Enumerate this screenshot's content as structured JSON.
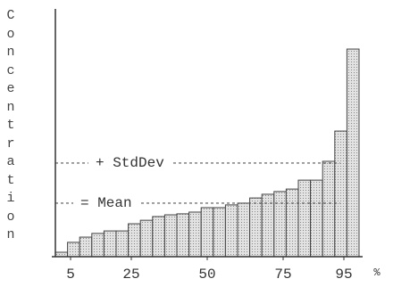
{
  "chart_data": {
    "type": "histogram",
    "y_label": "Concentration",
    "x_unit": "%",
    "bins": [
      0,
      4,
      8,
      12,
      16,
      20,
      24,
      28,
      32,
      36,
      40,
      44,
      48,
      52,
      56,
      60,
      64,
      68,
      72,
      76,
      80,
      84,
      88,
      92,
      96,
      100
    ],
    "values": [
      1.8,
      5.8,
      7.9,
      9.4,
      10.4,
      10.4,
      13.3,
      14.7,
      16.2,
      16.9,
      17.3,
      18,
      19.8,
      19.8,
      20.9,
      21.6,
      23.7,
      25.2,
      26.3,
      27.3,
      30.9,
      30.9,
      38.5,
      50.7,
      83.8
    ],
    "color": "#d4d4d4",
    "xlim": [
      0,
      100
    ],
    "xticks": [
      5,
      25,
      50,
      75,
      95
    ],
    "ylim": [
      0,
      100
    ],
    "reference_lines": [
      {
        "label": "+ StdDev",
        "value": 37.8
      },
      {
        "label": "= Mean",
        "value": 21.6
      }
    ]
  }
}
